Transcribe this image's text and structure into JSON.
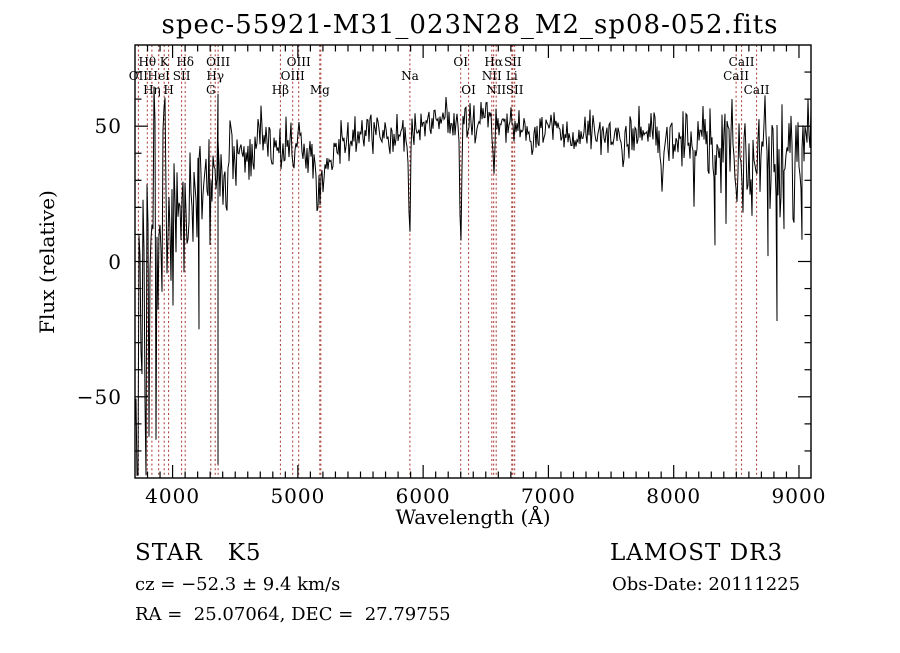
{
  "title": "spec-55921-M31_023N28_M2_sp08-052.fits",
  "footer": {
    "class_label": "STAR   K5",
    "survey": "LAMOST DR3",
    "cz": "cz = −52.3 ± 9.4 km/s",
    "obs_date": "Obs-Date: 20111225",
    "radec": "RA =  25.07064, DEC =  27.79755"
  },
  "chart_data": {
    "type": "line",
    "title": "spec-55921-M31_023N28_M2_sp08-052.fits",
    "xlabel": "Wavelength (Å)",
    "ylabel": "Flux (relative)",
    "xlim": [
      3700,
      9096
    ],
    "ylim": [
      -80,
      80
    ],
    "grid": false,
    "xticks": [
      4000,
      5000,
      6000,
      7000,
      8000,
      9000
    ],
    "xtick_labels": [
      "4000",
      "5000",
      "6000",
      "7000",
      "8000",
      "9000"
    ],
    "x_minor_step": 100,
    "yticks": [
      -50,
      0,
      50
    ],
    "ytick_labels": [
      "−50",
      "0",
      "50"
    ],
    "y_minor_step": 10,
    "line_color": "#000000",
    "marker_color": "#a93730",
    "noise_seed": 3,
    "spectral_lines": [
      {
        "label": "OII",
        "wavelength": 3727,
        "row": 2
      },
      {
        "label": "Hθ",
        "wavelength": 3798,
        "row": 1
      },
      {
        "label": "Hη",
        "wavelength": 3835,
        "row": 3
      },
      {
        "label": "HeI",
        "wavelength": 3889,
        "row": 2
      },
      {
        "label": "K",
        "wavelength": 3933,
        "row": 1
      },
      {
        "label": "H",
        "wavelength": 3968,
        "row": 3
      },
      {
        "label": "SII",
        "wavelength": 4072,
        "row": 2
      },
      {
        "label": "Hδ",
        "wavelength": 4101,
        "row": 1
      },
      {
        "label": "G",
        "wavelength": 4305,
        "row": 3
      },
      {
        "label": "Hγ",
        "wavelength": 4340,
        "row": 2
      },
      {
        "label": "OIII",
        "wavelength": 4363,
        "row": 1
      },
      {
        "label": "Hβ",
        "wavelength": 4861,
        "row": 3
      },
      {
        "label": "OIII",
        "wavelength": 4959,
        "row": 2
      },
      {
        "label": "OIII",
        "wavelength": 5007,
        "row": 1
      },
      {
        "label": "Mg",
        "wavelength": 5175,
        "row": 3
      },
      {
        "label": "",
        "wavelength": 5183,
        "row": 3
      },
      {
        "label": "Na",
        "wavelength": 5894,
        "row": 2
      },
      {
        "label": "OI",
        "wavelength": 6300,
        "row": 1
      },
      {
        "label": "OI",
        "wavelength": 6363,
        "row": 3
      },
      {
        "label": "NII",
        "wavelength": 6548,
        "row": 2
      },
      {
        "label": "Hα",
        "wavelength": 6563,
        "row": 1
      },
      {
        "label": "NII",
        "wavelength": 6583,
        "row": 3
      },
      {
        "label": "Li",
        "wavelength": 6708,
        "row": 2
      },
      {
        "label": "SII",
        "wavelength": 6716,
        "row": 1
      },
      {
        "label": "SII",
        "wavelength": 6731,
        "row": 3
      },
      {
        "label": "CaII",
        "wavelength": 8498,
        "row": 2
      },
      {
        "label": "CaII",
        "wavelength": 8542,
        "row": 1
      },
      {
        "label": "CaII",
        "wavelength": 8662,
        "row": 3
      }
    ],
    "continuum": [
      [
        3700,
        -35
      ],
      [
        3780,
        -30
      ],
      [
        3840,
        -15
      ],
      [
        3900,
        -2
      ],
      [
        3950,
        10
      ],
      [
        4000,
        18
      ],
      [
        4060,
        21
      ],
      [
        4120,
        24
      ],
      [
        4200,
        27
      ],
      [
        4300,
        27
      ],
      [
        4380,
        31
      ],
      [
        4460,
        36
      ],
      [
        4560,
        42
      ],
      [
        4660,
        46
      ],
      [
        4720,
        47
      ],
      [
        4780,
        44
      ],
      [
        4860,
        42
      ],
      [
        4940,
        44
      ],
      [
        5020,
        42
      ],
      [
        5100,
        40
      ],
      [
        5175,
        38
      ],
      [
        5260,
        40
      ],
      [
        5350,
        43
      ],
      [
        5450,
        46
      ],
      [
        5560,
        47
      ],
      [
        5700,
        49
      ],
      [
        5850,
        48
      ],
      [
        6000,
        50
      ],
      [
        6150,
        51
      ],
      [
        6280,
        54
      ],
      [
        6400,
        52
      ],
      [
        6500,
        53
      ],
      [
        6620,
        52
      ],
      [
        6720,
        50
      ],
      [
        6820,
        48
      ],
      [
        6920,
        47
      ],
      [
        7020,
        50
      ],
      [
        7120,
        48
      ],
      [
        7220,
        46
      ],
      [
        7320,
        49
      ],
      [
        7420,
        48
      ],
      [
        7520,
        46
      ],
      [
        7620,
        45
      ],
      [
        7720,
        48
      ],
      [
        7820,
        46
      ],
      [
        7920,
        44
      ],
      [
        8020,
        47
      ],
      [
        8120,
        45
      ],
      [
        8220,
        43
      ],
      [
        8320,
        41
      ],
      [
        8420,
        40
      ],
      [
        8520,
        41
      ],
      [
        8620,
        38
      ],
      [
        8720,
        41
      ],
      [
        8820,
        37
      ],
      [
        8900,
        40
      ],
      [
        9000,
        44
      ],
      [
        9096,
        52
      ]
    ],
    "noise_sigma": [
      [
        3700,
        45
      ],
      [
        3800,
        42
      ],
      [
        3860,
        35
      ],
      [
        3920,
        26
      ],
      [
        3960,
        20
      ],
      [
        4000,
        15
      ],
      [
        4080,
        12
      ],
      [
        4160,
        10
      ],
      [
        4260,
        9
      ],
      [
        4400,
        8
      ],
      [
        4600,
        6
      ],
      [
        4800,
        5.5
      ],
      [
        5000,
        5
      ],
      [
        5200,
        5
      ],
      [
        5400,
        4
      ],
      [
        5700,
        3.5
      ],
      [
        6000,
        3.2
      ],
      [
        6300,
        4
      ],
      [
        6600,
        3.2
      ],
      [
        7000,
        3.2
      ],
      [
        7400,
        3.8
      ],
      [
        7800,
        4.2
      ],
      [
        8000,
        5
      ],
      [
        8200,
        6.5
      ],
      [
        8400,
        8.5
      ],
      [
        8600,
        9.5
      ],
      [
        8800,
        10.5
      ],
      [
        9000,
        9
      ],
      [
        9096,
        8
      ]
    ],
    "absorption_features": [
      {
        "center": 4303,
        "floor": 24,
        "width": 18
      },
      {
        "center": 4861,
        "floor": 37,
        "width": 10
      },
      {
        "center": 5175,
        "floor": 22,
        "width": 30
      },
      {
        "center": 5892,
        "floor": 16,
        "width": 9
      },
      {
        "center": 6300,
        "floor": 8,
        "width": 8
      },
      {
        "center": 6563,
        "floor": 39,
        "width": 9
      },
      {
        "center": 6868,
        "floor": 41,
        "width": 12
      },
      {
        "center": 7190,
        "floor": 43,
        "width": 12
      },
      {
        "center": 7605,
        "floor": 40,
        "width": 14
      },
      {
        "center": 7910,
        "floor": 30,
        "width": 10
      },
      {
        "center": 8498,
        "floor": 29,
        "width": 8
      },
      {
        "center": 8542,
        "floor": 27,
        "width": 8
      },
      {
        "center": 8662,
        "floor": 26,
        "width": 9
      }
    ],
    "spikes": [
      {
        "wavelength": 4210,
        "lo": -25
      },
      {
        "wavelength": 4360,
        "hi": 62,
        "lo": -75
      },
      {
        "wavelength": 8333,
        "lo": 6
      },
      {
        "wavelength": 8756,
        "lo": 2
      },
      {
        "wavelength": 8828,
        "lo": -22
      },
      {
        "wavelength": 8880,
        "lo": 12
      },
      {
        "wavelength": 9028,
        "lo": 8
      }
    ],
    "extra_negative_noise": {
      "range": [
        8150,
        9050
      ],
      "prob": 0.05,
      "max_extra": 26
    }
  }
}
